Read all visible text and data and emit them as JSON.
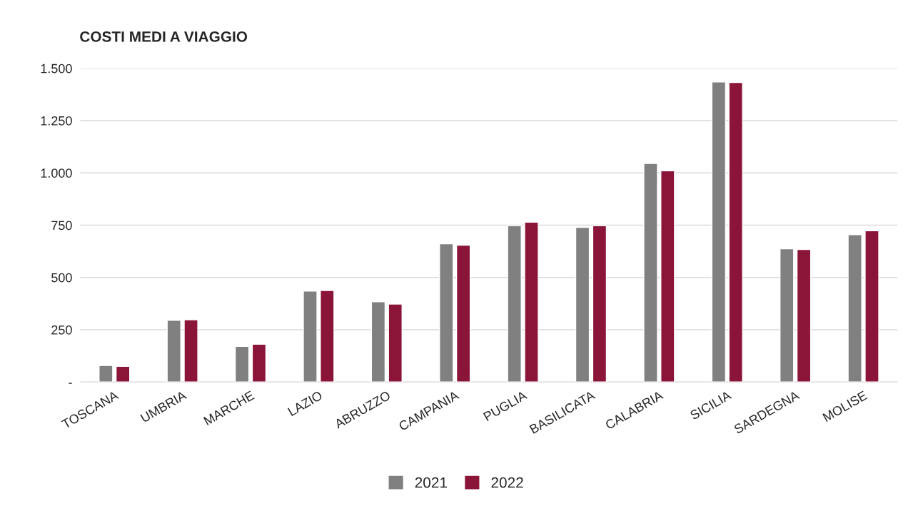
{
  "chart_data": {
    "type": "bar",
    "title": "COSTI MEDI A VIAGGIO",
    "categories": [
      "TOSCANA",
      "UMBRIA",
      "MARCHE",
      "LAZIO",
      "ABRUZZO",
      "CAMPANIA",
      "PUGLIA",
      "BASILICATA",
      "CALABRIA",
      "SICILIA",
      "SARDEGNA",
      "MOLISE"
    ],
    "series": [
      {
        "name": "2021",
        "color": "#808080",
        "values": [
          79,
          295,
          171,
          435,
          384,
          661,
          747,
          740,
          1045,
          1435,
          637,
          705
        ]
      },
      {
        "name": "2022",
        "color": "#8b1538",
        "values": [
          75,
          298,
          181,
          438,
          373,
          654,
          764,
          747,
          1010,
          1432,
          634,
          723
        ]
      }
    ],
    "ylim": [
      0,
      1500
    ],
    "yticks": [
      {
        "value": 0,
        "label": "-"
      },
      250,
      500,
      750,
      {
        "value": 1000,
        "label": "1.000"
      },
      {
        "value": 1250,
        "label": "1.250"
      },
      {
        "value": 1500,
        "label": "1.500"
      }
    ],
    "grid": "y",
    "legend": "bottom"
  }
}
